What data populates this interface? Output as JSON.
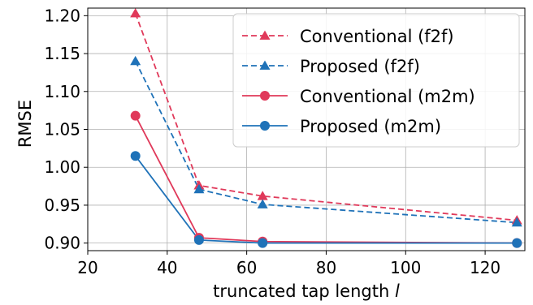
{
  "chart_data": {
    "type": "line",
    "title": "",
    "xlabel": "truncated tap length",
    "xlabel_var": "l",
    "ylabel": "RMSE",
    "xlim": [
      20,
      130
    ],
    "ylim": [
      0.89,
      1.21
    ],
    "xticks": [
      20,
      40,
      60,
      80,
      100,
      120
    ],
    "yticks": [
      0.9,
      0.95,
      1.0,
      1.05,
      1.1,
      1.15,
      1.2
    ],
    "ytick_labels": [
      "0.90",
      "0.95",
      "1.00",
      "1.05",
      "1.10",
      "1.15",
      "1.20"
    ],
    "grid": true,
    "legend_position": "top-right",
    "x": [
      32,
      48,
      64,
      128
    ],
    "series": [
      {
        "name": "Conventional (f2f)",
        "values": [
          1.203,
          0.976,
          0.962,
          0.93
        ],
        "color": "#e0395a",
        "dash": "dashed",
        "marker": "triangle"
      },
      {
        "name": "Proposed (f2f)",
        "values": [
          1.14,
          0.971,
          0.951,
          0.927
        ],
        "color": "#1f72b8",
        "dash": "dashed",
        "marker": "triangle"
      },
      {
        "name": "Conventional (m2m)",
        "values": [
          1.068,
          0.907,
          0.902,
          0.9
        ],
        "color": "#e0395a",
        "dash": "solid",
        "marker": "circle"
      },
      {
        "name": "Proposed (m2m)",
        "values": [
          1.015,
          0.904,
          0.9,
          0.9
        ],
        "color": "#1f72b8",
        "dash": "solid",
        "marker": "circle"
      }
    ]
  }
}
